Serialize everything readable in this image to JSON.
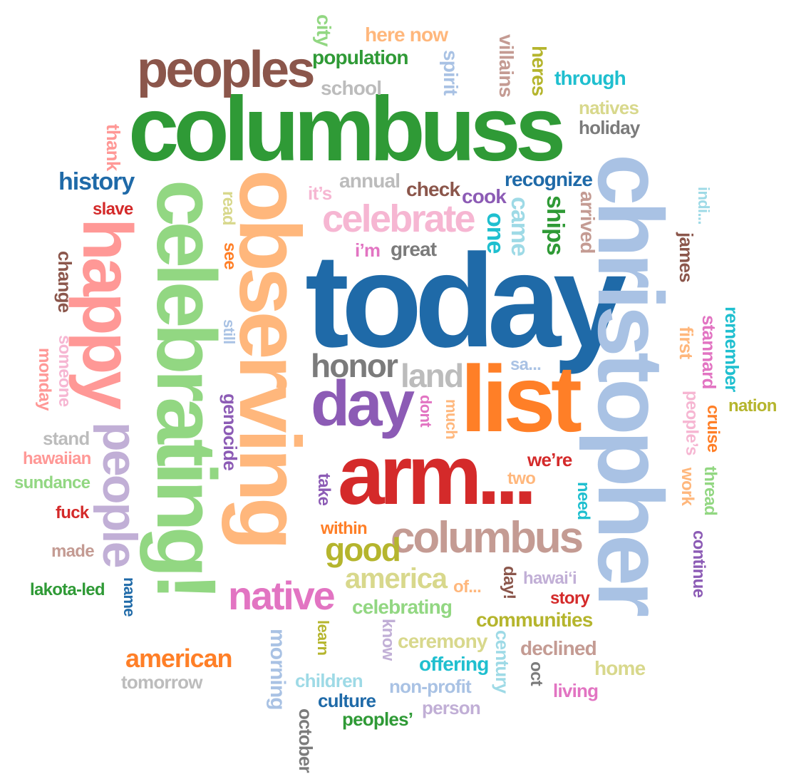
{
  "palette": {
    "dark_blue": "#1f6aa8",
    "light_blue": "#a9c2e4",
    "orange": "#ff7f27",
    "light_orange": "#ffb77c",
    "green": "#2f9a36",
    "light_green": "#92d782",
    "red": "#d42a2a",
    "pink": "#ff9896",
    "purple": "#8c5bb5",
    "lavender": "#c1afd6",
    "brown": "#8b564b",
    "tan": "#c49b93",
    "magenta": "#e274c2",
    "light_pink": "#f6b6d2",
    "gray": "#7b7b7b",
    "light_gray": "#bcbcbc",
    "olive": "#b5b52d",
    "light_olive": "#d8d88c",
    "teal": "#1fbfcf",
    "light_teal": "#9edae6"
  },
  "words": [
    {
      "text": "today",
      "color": "#1f6aa8",
      "orientation": "horizontal"
    },
    {
      "text": "christopher",
      "color": "#a9c2e4",
      "orientation": "vertical"
    },
    {
      "text": "columbuss",
      "color": "#2f9a36",
      "orientation": "horizontal"
    },
    {
      "text": "observing",
      "color": "#ffb77c",
      "orientation": "vertical"
    },
    {
      "text": "celebrating!",
      "color": "#92d782",
      "orientation": "vertical"
    },
    {
      "text": "arm...",
      "color": "#d42a2a",
      "orientation": "horizontal"
    },
    {
      "text": "list",
      "color": "#ff7f27",
      "orientation": "horizontal"
    },
    {
      "text": "happy",
      "color": "#ff9896",
      "orientation": "vertical"
    },
    {
      "text": "peoples",
      "color": "#8b564b",
      "orientation": "horizontal"
    },
    {
      "text": "day",
      "color": "#8c5bb5",
      "orientation": "horizontal"
    },
    {
      "text": "people",
      "color": "#c1afd6",
      "orientation": "vertical"
    },
    {
      "text": "columbus",
      "color": "#c49b93",
      "orientation": "horizontal"
    },
    {
      "text": "celebrate",
      "color": "#f6b6d2",
      "orientation": "horizontal"
    },
    {
      "text": "native",
      "color": "#e274c2",
      "orientation": "horizontal"
    },
    {
      "text": "honor",
      "color": "#7b7b7b",
      "orientation": "horizontal"
    },
    {
      "text": "land",
      "color": "#bcbcbc",
      "orientation": "horizontal"
    },
    {
      "text": "good",
      "color": "#b5b52d",
      "orientation": "horizontal"
    },
    {
      "text": "america",
      "color": "#d8d88c",
      "orientation": "horizontal"
    },
    {
      "text": "american",
      "color": "#ff7f27",
      "orientation": "horizontal"
    },
    {
      "text": "history",
      "color": "#1f6aa8",
      "orientation": "horizontal"
    },
    {
      "text": "recognize",
      "color": "#1f6aa8",
      "orientation": "horizontal"
    },
    {
      "text": "population",
      "color": "#2f9a36",
      "orientation": "horizontal"
    },
    {
      "text": "here now",
      "color": "#ffb77c",
      "orientation": "horizontal"
    },
    {
      "text": "city",
      "color": "#92d782",
      "orientation": "vertical"
    },
    {
      "text": "school",
      "color": "#bcbcbc",
      "orientation": "horizontal"
    },
    {
      "text": "spirit",
      "color": "#a9c2e4",
      "orientation": "vertical"
    },
    {
      "text": "villains",
      "color": "#c49b93",
      "orientation": "vertical"
    },
    {
      "text": "heres",
      "color": "#b5b52d",
      "orientation": "vertical"
    },
    {
      "text": "through",
      "color": "#1fbfcf",
      "orientation": "horizontal"
    },
    {
      "text": "natives",
      "color": "#d8d88c",
      "orientation": "horizontal"
    },
    {
      "text": "holiday",
      "color": "#7b7b7b",
      "orientation": "horizontal"
    },
    {
      "text": "thank",
      "color": "#ff9896",
      "orientation": "vertical"
    },
    {
      "text": "annual",
      "color": "#bcbcbc",
      "orientation": "horizontal"
    },
    {
      "text": "it’s",
      "color": "#f6b6d2",
      "orientation": "horizontal"
    },
    {
      "text": "check",
      "color": "#8b564b",
      "orientation": "horizontal"
    },
    {
      "text": "cook",
      "color": "#8c5bb5",
      "orientation": "horizontal"
    },
    {
      "text": "slave",
      "color": "#d42a2a",
      "orientation": "horizontal"
    },
    {
      "text": "read",
      "color": "#d8d88c",
      "orientation": "vertical"
    },
    {
      "text": "see",
      "color": "#ff7f27",
      "orientation": "vertical"
    },
    {
      "text": "came",
      "color": "#9edae6",
      "orientation": "vertical"
    },
    {
      "text": "one",
      "color": "#1fbfcf",
      "orientation": "vertical"
    },
    {
      "text": "ships",
      "color": "#2f9a36",
      "orientation": "vertical"
    },
    {
      "text": "arrived",
      "color": "#c49b93",
      "orientation": "vertical"
    },
    {
      "text": "i’m",
      "color": "#e274c2",
      "orientation": "horizontal"
    },
    {
      "text": "great",
      "color": "#7b7b7b",
      "orientation": "horizontal"
    },
    {
      "text": "indi...",
      "color": "#9edae6",
      "orientation": "vertical"
    },
    {
      "text": "james",
      "color": "#8b564b",
      "orientation": "vertical"
    },
    {
      "text": "change",
      "color": "#8b564b",
      "orientation": "vertical"
    },
    {
      "text": "still",
      "color": "#a9c2e4",
      "orientation": "vertical"
    },
    {
      "text": "remember",
      "color": "#1fbfcf",
      "orientation": "vertical"
    },
    {
      "text": "stannard",
      "color": "#e274c2",
      "orientation": "vertical"
    },
    {
      "text": "first",
      "color": "#ffb77c",
      "orientation": "vertical"
    },
    {
      "text": "someone",
      "color": "#f6b6d2",
      "orientation": "vertical"
    },
    {
      "text": "monday",
      "color": "#ff9896",
      "orientation": "vertical"
    },
    {
      "text": "sa...",
      "color": "#a9c2e4",
      "orientation": "horizontal"
    },
    {
      "text": "dont",
      "color": "#e274c2",
      "orientation": "vertical"
    },
    {
      "text": "much",
      "color": "#ffb77c",
      "orientation": "vertical"
    },
    {
      "text": "genocide",
      "color": "#8c5bb5",
      "orientation": "vertical"
    },
    {
      "text": "people’s",
      "color": "#f6b6d2",
      "orientation": "vertical"
    },
    {
      "text": "nation",
      "color": "#b5b52d",
      "orientation": "horizontal"
    },
    {
      "text": "cruise",
      "color": "#ff7f27",
      "orientation": "vertical"
    },
    {
      "text": "stand",
      "color": "#bcbcbc",
      "orientation": "horizontal"
    },
    {
      "text": "hawaiian",
      "color": "#ff9896",
      "orientation": "horizontal"
    },
    {
      "text": "we’re",
      "color": "#d42a2a",
      "orientation": "horizontal"
    },
    {
      "text": "work",
      "color": "#ffb77c",
      "orientation": "vertical"
    },
    {
      "text": "thread",
      "color": "#92d782",
      "orientation": "vertical"
    },
    {
      "text": "sundance",
      "color": "#92d782",
      "orientation": "horizontal"
    },
    {
      "text": "take",
      "color": "#8c5bb5",
      "orientation": "vertical"
    },
    {
      "text": "two",
      "color": "#ffb77c",
      "orientation": "horizontal"
    },
    {
      "text": "need",
      "color": "#1fbfcf",
      "orientation": "vertical"
    },
    {
      "text": "fuck",
      "color": "#d42a2a",
      "orientation": "horizontal"
    },
    {
      "text": "within",
      "color": "#ff7f27",
      "orientation": "horizontal"
    },
    {
      "text": "continue",
      "color": "#8c5bb5",
      "orientation": "vertical"
    },
    {
      "text": "made",
      "color": "#c49b93",
      "orientation": "horizontal"
    },
    {
      "text": "day!",
      "color": "#8b564b",
      "orientation": "vertical"
    },
    {
      "text": "hawai‘i",
      "color": "#c1afd6",
      "orientation": "horizontal"
    },
    {
      "text": "of...",
      "color": "#ffb77c",
      "orientation": "horizontal"
    },
    {
      "text": "story",
      "color": "#d42a2a",
      "orientation": "horizontal"
    },
    {
      "text": "lakota-led",
      "color": "#2f9a36",
      "orientation": "horizontal"
    },
    {
      "text": "name",
      "color": "#1f6aa8",
      "orientation": "vertical"
    },
    {
      "text": "celebrating",
      "color": "#92d782",
      "orientation": "horizontal"
    },
    {
      "text": "communities",
      "color": "#b5b52d",
      "orientation": "horizontal"
    },
    {
      "text": "know",
      "color": "#c1afd6",
      "orientation": "vertical"
    },
    {
      "text": "learn",
      "color": "#b5b52d",
      "orientation": "vertical"
    },
    {
      "text": "morning",
      "color": "#a9c2e4",
      "orientation": "vertical"
    },
    {
      "text": "ceremony",
      "color": "#d8d88c",
      "orientation": "horizontal"
    },
    {
      "text": "century",
      "color": "#9edae6",
      "orientation": "vertical"
    },
    {
      "text": "declined",
      "color": "#c49b93",
      "orientation": "horizontal"
    },
    {
      "text": "offering",
      "color": "#1fbfcf",
      "orientation": "horizontal"
    },
    {
      "text": "oct",
      "color": "#7b7b7b",
      "orientation": "vertical"
    },
    {
      "text": "home",
      "color": "#d8d88c",
      "orientation": "horizontal"
    },
    {
      "text": "tomorrow",
      "color": "#bcbcbc",
      "orientation": "horizontal"
    },
    {
      "text": "children",
      "color": "#9edae6",
      "orientation": "horizontal"
    },
    {
      "text": "non-profit",
      "color": "#a9c2e4",
      "orientation": "horizontal"
    },
    {
      "text": "living",
      "color": "#e274c2",
      "orientation": "horizontal"
    },
    {
      "text": "culture",
      "color": "#1f6aa8",
      "orientation": "horizontal"
    },
    {
      "text": "person",
      "color": "#c1afd6",
      "orientation": "horizontal"
    },
    {
      "text": "peoples’",
      "color": "#2f9a36",
      "orientation": "horizontal"
    },
    {
      "text": "october",
      "color": "#7b7b7b",
      "orientation": "vertical"
    }
  ]
}
